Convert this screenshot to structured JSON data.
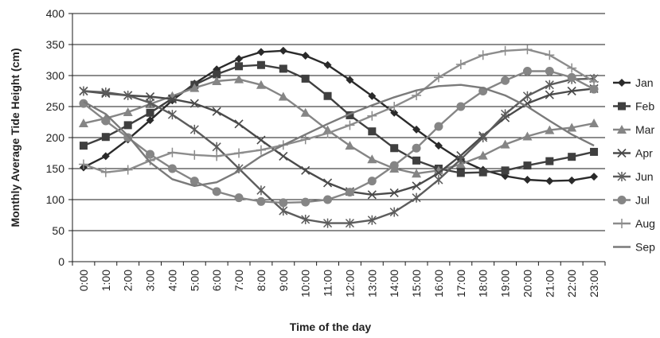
{
  "chart_data": {
    "type": "line",
    "title": "",
    "xlabel": "Time of the day",
    "ylabel": "Monthly Average Tide Height (cm)",
    "ylim": [
      0,
      400
    ],
    "yticks": [
      0,
      50,
      100,
      150,
      200,
      250,
      300,
      350,
      400
    ],
    "grid": true,
    "legend_position": "right",
    "categories": [
      "0:00",
      "1:00",
      "2:00",
      "3:00",
      "4:00",
      "5:00",
      "6:00",
      "7:00",
      "8:00",
      "9:00",
      "10:00",
      "11:00",
      "12:00",
      "13:00",
      "14:00",
      "15:00",
      "16:00",
      "17:00",
      "18:00",
      "19:00",
      "20:00",
      "21:00",
      "22:00",
      "23:00"
    ],
    "series": [
      {
        "name": "Jan",
        "color": "#2a2a2a",
        "marker": "diamond",
        "values": [
          152,
          170,
          197,
          228,
          260,
          287,
          310,
          327,
          338,
          340,
          332,
          317,
          293,
          267,
          240,
          213,
          187,
          164,
          148,
          138,
          132,
          130,
          131,
          137
        ]
      },
      {
        "name": "Feb",
        "color": "#3f3f3f",
        "marker": "square",
        "values": [
          187,
          201,
          220,
          240,
          263,
          285,
          302,
          315,
          317,
          311,
          295,
          267,
          236,
          210,
          183,
          163,
          150,
          143,
          144,
          147,
          155,
          162,
          169,
          177
        ]
      },
      {
        "name": "Mar",
        "color": "#858585",
        "marker": "triangle",
        "values": [
          223,
          231,
          241,
          254,
          267,
          280,
          291,
          294,
          285,
          266,
          240,
          212,
          187,
          165,
          150,
          142,
          147,
          157,
          171,
          189,
          202,
          212,
          216,
          223
        ]
      },
      {
        "name": "Apr",
        "color": "#4a4a4a",
        "marker": "x",
        "values": [
          275,
          271,
          268,
          266,
          262,
          255,
          242,
          222,
          196,
          170,
          147,
          127,
          113,
          108,
          111,
          122,
          143,
          171,
          203,
          232,
          255,
          269,
          275,
          279
        ]
      },
      {
        "name": "Jun",
        "color": "#5c5c5c",
        "marker": "star",
        "values": [
          275,
          273,
          268,
          256,
          237,
          213,
          185,
          150,
          115,
          82,
          68,
          62,
          62,
          67,
          80,
          103,
          132,
          165,
          200,
          238,
          267,
          285,
          294,
          295
        ]
      },
      {
        "name": "Jul",
        "color": "#858585",
        "marker": "circle",
        "values": [
          255,
          227,
          200,
          173,
          150,
          130,
          113,
          103,
          97,
          95,
          96,
          100,
          112,
          130,
          155,
          183,
          218,
          250,
          275,
          292,
          307,
          307,
          297,
          278
        ]
      },
      {
        "name": "Aug",
        "color": "#8c8c8c",
        "marker": "plus",
        "values": [
          157,
          144,
          148,
          163,
          176,
          172,
          170,
          175,
          180,
          188,
          197,
          207,
          220,
          235,
          250,
          268,
          297,
          318,
          333,
          340,
          342,
          333,
          312,
          290
        ]
      },
      {
        "name": "Sep",
        "color": "#7a7a7a",
        "marker": "none",
        "values": [
          258,
          238,
          203,
          160,
          133,
          122,
          128,
          146,
          170,
          188,
          205,
          222,
          238,
          252,
          265,
          276,
          283,
          285,
          280,
          268,
          250,
          227,
          205,
          187
        ]
      }
    ]
  }
}
